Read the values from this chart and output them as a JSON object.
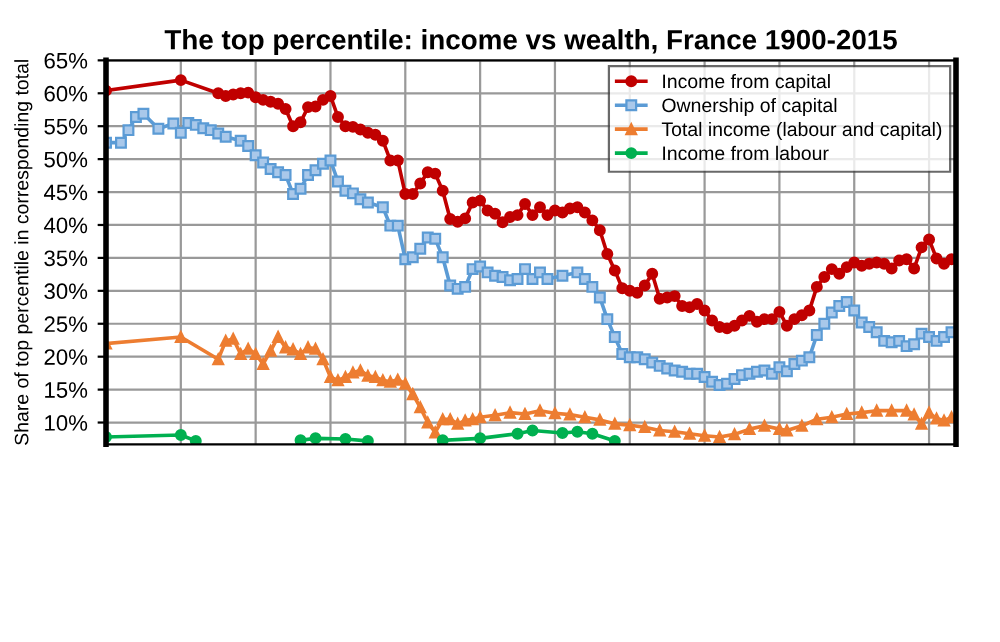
{
  "chart_data": {
    "type": "line",
    "title": "The top percentile: income vs wealth, France 1900-2015",
    "ylabel": "Share of top percentile in corresponding total",
    "categories": [
      null,
      null,
      null,
      null,
      null,
      null,
      null,
      null,
      null,
      null,
      null,
      null,
      null,
      null,
      null,
      null,
      null,
      null,
      null,
      null,
      null,
      null,
      null,
      null,
      null,
      null,
      null,
      null,
      null,
      null,
      null,
      null,
      null,
      null,
      null,
      null,
      null,
      null,
      null,
      null,
      null,
      null,
      null,
      null,
      null,
      null,
      null,
      null,
      null,
      null,
      null,
      null,
      null,
      null,
      null,
      null,
      null,
      null,
      null,
      null,
      null,
      null,
      null,
      null,
      null,
      null,
      null,
      null,
      null,
      null,
      null,
      null,
      null,
      null,
      null,
      null,
      null,
      null,
      null,
      null,
      null,
      null,
      null,
      null,
      null,
      null,
      null,
      null,
      null,
      null,
      null,
      null,
      null,
      null,
      null,
      null,
      null,
      null,
      null,
      null,
      null,
      null,
      null,
      null,
      null,
      null,
      null,
      null,
      null,
      null,
      null,
      null,
      null,
      null
    ],
    "ylim": [
      6.7,
      65
    ],
    "yticks": [
      {
        "value": 10,
        "label": "10%"
      },
      {
        "value": 15,
        "label": "15%"
      },
      {
        "value": 20,
        "label": "20%"
      },
      {
        "value": 25,
        "label": "25%"
      },
      {
        "value": 30,
        "label": "30%"
      },
      {
        "value": 35,
        "label": "35%"
      },
      {
        "value": 40,
        "label": "40%"
      },
      {
        "value": 45,
        "label": "45%"
      },
      {
        "value": 50,
        "label": "50%"
      },
      {
        "value": 55,
        "label": "55%"
      },
      {
        "value": 60,
        "label": "60%"
      },
      {
        "value": 65,
        "label": "65%"
      }
    ],
    "grid": true,
    "legend": "top right",
    "line_style": "solid",
    "series": [
      {
        "name": "Income from capital",
        "color": "#c00000",
        "marker": "circle",
        "values": [
          60.4,
          null,
          null,
          null,
          null,
          null,
          null,
          null,
          null,
          null,
          62,
          null,
          null,
          null,
          null,
          60,
          59.6,
          59.8,
          60,
          60.1,
          59.4,
          59,
          58.7,
          58.4,
          57.6,
          55,
          55.6,
          57.9,
          58,
          59,
          59.6,
          56.4,
          55,
          54.9,
          54.5,
          54,
          53.7,
          52.8,
          49.8,
          49.8,
          44.7,
          44.7,
          46.3,
          48,
          47.8,
          45.2,
          40.9,
          40.5,
          41,
          43.4,
          43.7,
          42.2,
          41.7,
          40.4,
          41.2,
          41.5,
          43.2,
          41.5,
          42.7,
          41.5,
          42.2,
          41.9,
          42.5,
          42.7,
          41.9,
          40.7,
          39.2,
          35.6,
          33.1,
          30.4,
          30,
          29.7,
          30.8,
          32.6,
          28.8,
          29,
          29.2,
          27.7,
          27.5,
          28,
          27,
          25.5,
          24.5,
          24.3,
          24.7,
          25.5,
          26.2,
          25.3,
          25.7,
          25.7,
          26.8,
          24.7,
          25.7,
          26.3,
          27,
          30.6,
          32.1,
          33.3,
          32.6,
          33.6,
          34.3,
          33.8,
          34.1,
          34.3,
          34.1,
          33.4,
          34.6,
          34.8,
          33.4,
          36.6,
          37.8,
          34.9,
          34.1,
          34.8
        ]
      },
      {
        "name": "Ownership of capital",
        "color": "#5b9bd5",
        "marker": "square",
        "values": [
          52.5,
          null,
          52.5,
          54.4,
          56.4,
          56.9,
          null,
          54.6,
          null,
          55.4,
          54,
          55.5,
          55.2,
          54.7,
          54.4,
          53.9,
          53.4,
          null,
          52.8,
          52,
          50.6,
          49.5,
          48.5,
          48,
          47.6,
          44.7,
          45.5,
          47.6,
          48.3,
          49.3,
          49.8,
          46.6,
          45.2,
          44.8,
          43.9,
          43.4,
          null,
          42.7,
          39.9,
          39.9,
          34.8,
          35.1,
          36.4,
          38.1,
          37.9,
          35.1,
          30.8,
          30.3,
          30.6,
          33.3,
          33.7,
          32.8,
          32.3,
          32.1,
          31.6,
          31.8,
          33.3,
          31.8,
          32.8,
          31.8,
          null,
          32.3,
          null,
          32.8,
          31.8,
          30.6,
          29,
          25.7,
          23,
          20.4,
          19.9,
          19.9,
          19.6,
          19.1,
          18.6,
          18.2,
          17.9,
          17.7,
          17.4,
          17.4,
          16.9,
          16.2,
          15.7,
          15.9,
          16.6,
          17.2,
          17.4,
          17.7,
          17.9,
          17.4,
          18.4,
          17.8,
          18.9,
          19.4,
          19.9,
          23.3,
          25,
          26.7,
          27.7,
          28.3,
          27,
          25.2,
          24.5,
          23.7,
          22.4,
          22.2,
          22.4,
          21.6,
          21.9,
          23.5,
          23,
          22.4,
          23,
          23.7
        ]
      },
      {
        "name": "Total income (labour and capital)",
        "color": "#ed7d31",
        "marker": "triangle",
        "values": [
          22,
          null,
          null,
          null,
          null,
          null,
          null,
          null,
          null,
          null,
          23,
          null,
          null,
          null,
          null,
          19.6,
          22.4,
          22.7,
          20.4,
          21.2,
          20.4,
          18.9,
          20.9,
          23,
          21.4,
          21.1,
          20.4,
          21.4,
          21.2,
          19.6,
          16.9,
          16.4,
          16.9,
          17.6,
          17.9,
          17.1,
          16.9,
          16.4,
          16.2,
          16.5,
          15.9,
          14.3,
          12.3,
          10,
          8.5,
          10.5,
          10.5,
          9.8,
          10.3,
          10.5,
          10.8,
          null,
          11.1,
          null,
          11.5,
          null,
          11.3,
          null,
          11.8,
          null,
          11.4,
          null,
          11.2,
          null,
          10.8,
          null,
          10.4,
          null,
          9.8,
          null,
          9.6,
          null,
          9.3,
          null,
          8.8,
          null,
          8.6,
          null,
          8.3,
          null,
          8.0,
          null,
          7.8,
          null,
          8.2,
          null,
          9.0,
          null,
          9.5,
          null,
          9.0,
          8.8,
          null,
          9.5,
          null,
          10.5,
          null,
          10.8,
          null,
          11.3,
          null,
          11.5,
          null,
          11.8,
          null,
          11.8,
          null,
          11.8,
          11.2,
          9.8,
          11.5,
          10.6,
          10.3,
          10.8
        ]
      },
      {
        "name": "Income from labour",
        "color": "#00b050",
        "marker": "circle",
        "values": [
          7.8,
          null,
          null,
          null,
          null,
          null,
          null,
          null,
          null,
          null,
          8.1,
          null,
          7.2,
          null,
          null,
          null,
          null,
          null,
          null,
          null,
          null,
          null,
          null,
          null,
          null,
          null,
          null,
          null,
          null,
          null,
          null,
          null,
          null,
          null,
          null,
          null,
          null,
          null,
          null,
          null,
          null,
          null,
          null,
          null,
          null,
          null,
          null,
          null,
          null,
          null,
          null,
          null,
          null,
          null,
          null,
          null,
          null,
          null,
          null,
          null,
          null,
          null,
          null,
          null,
          null,
          null,
          null,
          null,
          null,
          null,
          null,
          null,
          null,
          null,
          null,
          null,
          null,
          null,
          null,
          null,
          null,
          null,
          null,
          null,
          null,
          null,
          null,
          null,
          null,
          null,
          null,
          null,
          null,
          null,
          null,
          null,
          null,
          null,
          null,
          null,
          null,
          null,
          null,
          null,
          null,
          null,
          null,
          null,
          null,
          null,
          null,
          null,
          null,
          null
        ]
      },
      {
        "color": "#00b050",
        "marker": "circle",
        "values": [
          null,
          null,
          null,
          null,
          null,
          null,
          null,
          null,
          null,
          null,
          null,
          null,
          null,
          null,
          null,
          null,
          null,
          null,
          null,
          null,
          null,
          null,
          null,
          null,
          null,
          null,
          7.3,
          null,
          7.6,
          null,
          null,
          null,
          7.5,
          null,
          null,
          7.2,
          null,
          null,
          null,
          null,
          null,
          null,
          null,
          null,
          null,
          null,
          null,
          null,
          null,
          null,
          null,
          null,
          null,
          null,
          null,
          null,
          null,
          null,
          null,
          null,
          null,
          null,
          null,
          null,
          null,
          null,
          null,
          null,
          null,
          null,
          null,
          null,
          null,
          null,
          null,
          null,
          null,
          null,
          null,
          null,
          null,
          null,
          null,
          null,
          null,
          null,
          null,
          null,
          null,
          null,
          null,
          null,
          null,
          null,
          null,
          null,
          null,
          null,
          null,
          null,
          null,
          null,
          null,
          null,
          null,
          null,
          null,
          null,
          null,
          null,
          null,
          null,
          null,
          null
        ]
      },
      {
        "color": "#00b050",
        "marker": "circle",
        "values": [
          null,
          null,
          null,
          null,
          null,
          null,
          null,
          null,
          null,
          null,
          null,
          null,
          null,
          null,
          null,
          null,
          null,
          null,
          null,
          null,
          null,
          null,
          null,
          null,
          null,
          null,
          null,
          null,
          null,
          null,
          null,
          null,
          null,
          null,
          null,
          null,
          null,
          null,
          null,
          null,
          null,
          null,
          null,
          null,
          null,
          7.3,
          null,
          null,
          null,
          null,
          7.6,
          null,
          null,
          null,
          null,
          8.3,
          null,
          8.8,
          null,
          null,
          null,
          8.4,
          null,
          8.6,
          null,
          8.3,
          null,
          null,
          7.2,
          null,
          null,
          null,
          null,
          null,
          null,
          null,
          null,
          null,
          null,
          null,
          null,
          null,
          null,
          null,
          null,
          null,
          null,
          null,
          null,
          null,
          null,
          null,
          null,
          null,
          null,
          null,
          null,
          null,
          null,
          null,
          null,
          null,
          null,
          null,
          null,
          null,
          null,
          null,
          null,
          null,
          null,
          null,
          null,
          null
        ]
      }
    ]
  }
}
